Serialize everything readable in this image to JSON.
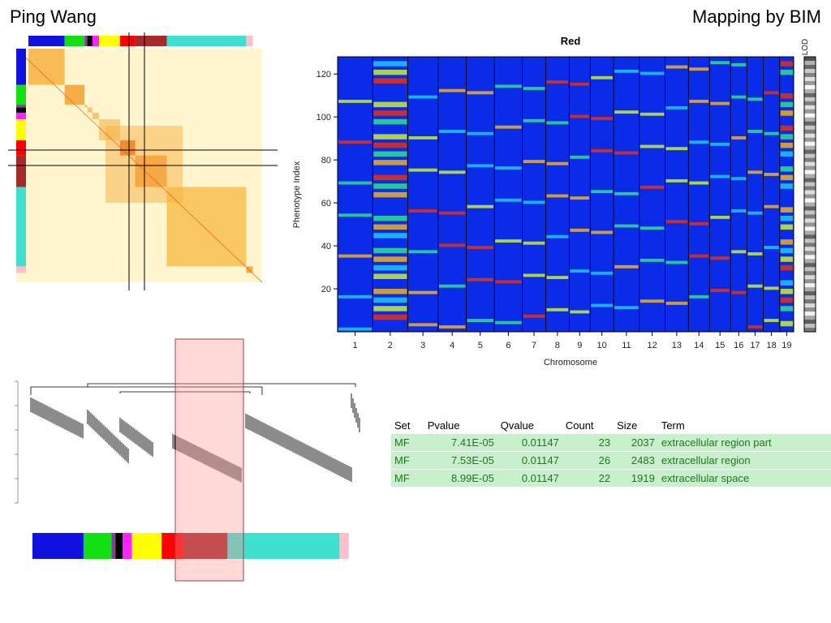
{
  "slide": {
    "title_left": "Ping Wang",
    "title_right": "Mapping by BIM"
  },
  "module_colors": [
    "#1212e0",
    "#12e012",
    "#8a3aa0",
    "#000000",
    "#ff22ff",
    "#ffff00",
    "#ff0000",
    "#a52a2a",
    "#40e0d0",
    "#ffc0cb"
  ],
  "chart_data": {
    "type": "heatmap",
    "title": "Red",
    "xlabel": "Chromosome",
    "ylabel": "Phenotype Index",
    "legend_label": "LOD",
    "x_categories": [
      "1",
      "2",
      "3",
      "4",
      "5",
      "6",
      "7",
      "8",
      "9",
      "10",
      "11",
      "12",
      "13",
      "14",
      "15",
      "16",
      "17",
      "18",
      "19"
    ],
    "y_ticks": [
      20,
      40,
      60,
      80,
      100,
      120
    ],
    "ylim": [
      0,
      128
    ]
  },
  "enrichment_table": {
    "headers": [
      "Set",
      "Pvalue",
      "Qvalue",
      "Count",
      "Size",
      "Term"
    ],
    "rows": [
      {
        "set": "MF",
        "pvalue": "7.41E-05",
        "qvalue": "0.01147",
        "count": "23",
        "size": "2037",
        "term": "extracellular region part"
      },
      {
        "set": "MF",
        "pvalue": "7.53E-05",
        "qvalue": "0.01147",
        "count": "26",
        "size": "2483",
        "term": "extracellular region"
      },
      {
        "set": "MF",
        "pvalue": "8.99E-05",
        "qvalue": "0.01147",
        "count": "22",
        "size": "1919",
        "term": "extracellular space"
      }
    ]
  }
}
